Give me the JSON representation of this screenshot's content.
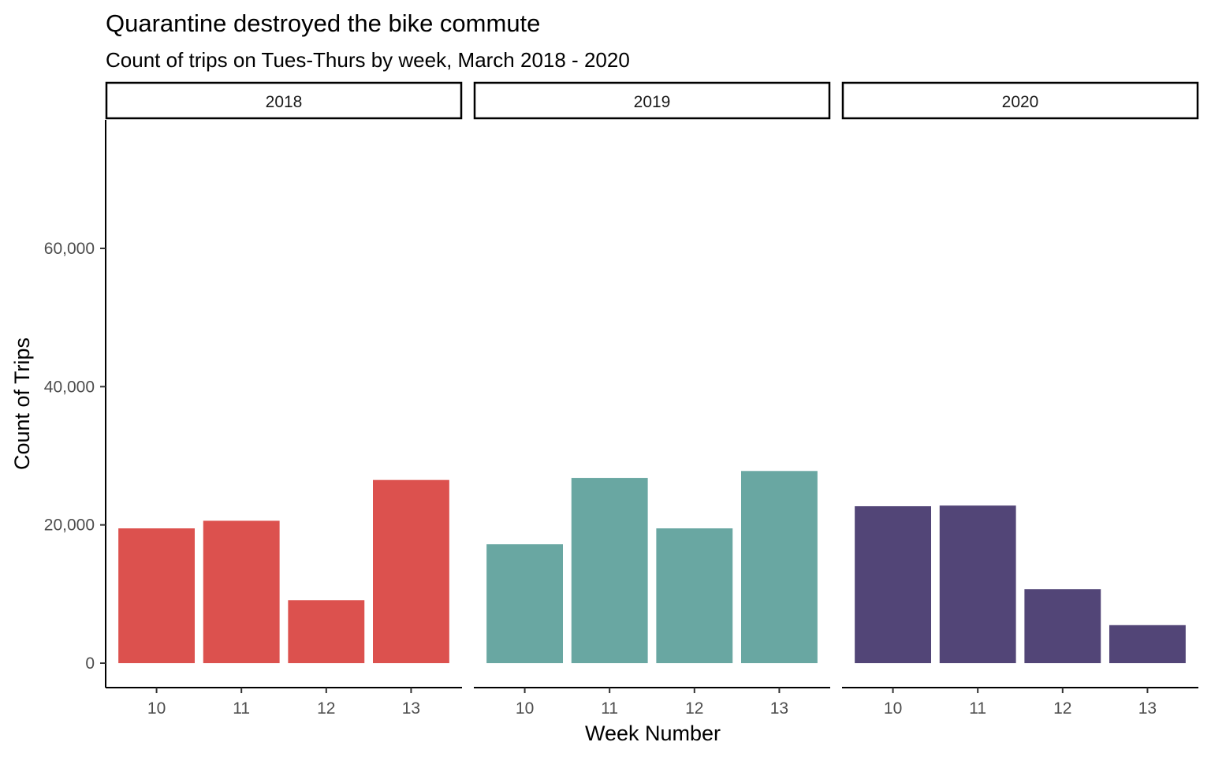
{
  "chart_data": {
    "type": "bar",
    "title": "Quarantine destroyed the bike commute",
    "subtitle": "Count of trips on Tues-Thurs by week, March 2018 - 2020",
    "xlabel": "Week Number",
    "ylabel": "Count of Trips",
    "ylim": [
      0,
      76000
    ],
    "y_ticks": [
      0,
      20000,
      40000,
      60000
    ],
    "y_tick_labels": [
      "0",
      "20,000",
      "40,000",
      "60,000"
    ],
    "categories": [
      "10",
      "11",
      "12",
      "13"
    ],
    "grid": false,
    "legend": "none",
    "facets": [
      {
        "label": "2018",
        "color": "#DC514E",
        "values": [
          19500,
          20600,
          9100,
          26500
        ]
      },
      {
        "label": "2019",
        "color": "#69A7A2",
        "values": [
          17200,
          26800,
          19500,
          27800
        ]
      },
      {
        "label": "2020",
        "color": "#524577",
        "values": [
          22700,
          22800,
          10700,
          5500
        ]
      }
    ]
  }
}
